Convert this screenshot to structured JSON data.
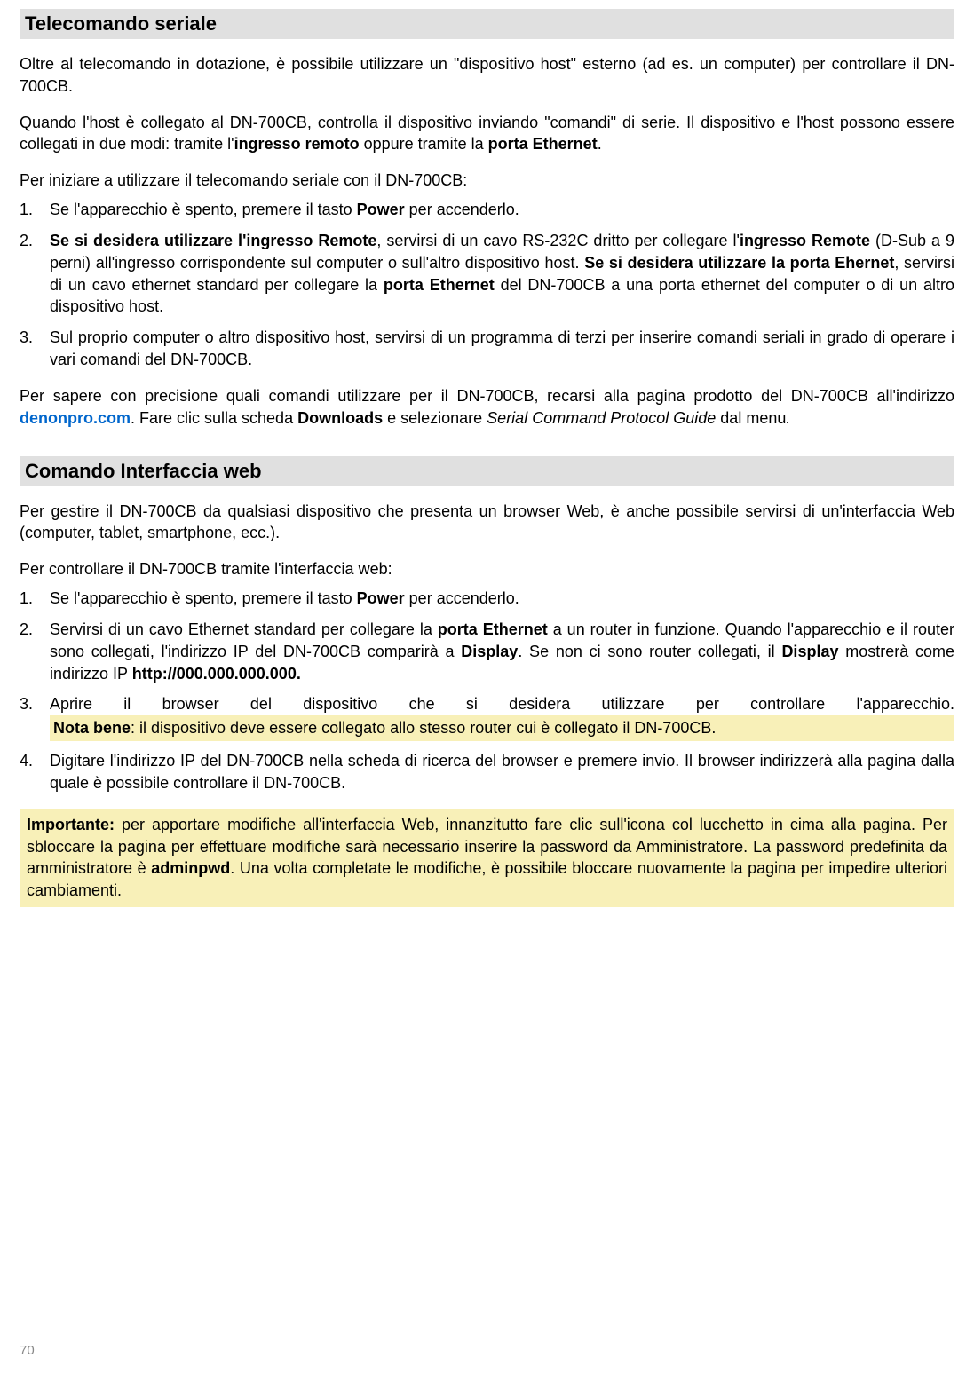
{
  "section1": {
    "heading": "Telecomando seriale",
    "para1": "Oltre al telecomando in dotazione, è possibile utilizzare un \"dispositivo host\" esterno (ad es. un computer) per controllare il DN-700CB.",
    "para2_pre": "Quando l'host è collegato al DN-700CB, controlla il dispositivo inviando \"comandi\" di serie. Il dispositivo e l'host possono essere collegati in due modi: tramite l'",
    "para2_bold1": "ingresso remoto",
    "para2_mid": " oppure tramite la ",
    "para2_bold2": "porta Ethernet",
    "para2_post": ".",
    "intro": "Per iniziare a utilizzare il telecomando seriale con il DN-700CB:",
    "li1_pre": "Se l'apparecchio è spento, premere il tasto ",
    "li1_bold": "Power",
    "li1_post": " per accenderlo.",
    "li2_bold1": "Se si desidera utilizzare l'ingresso Remote",
    "li2_mid1": ", servirsi di un cavo RS-232C dritto per collegare l'",
    "li2_bold2": "ingresso Remote",
    "li2_mid2": " (D-Sub a 9 perni) all'ingresso corrispondente sul computer o sull'altro dispositivo host. ",
    "li2_bold3": "Se si desidera utilizzare la porta Ehernet",
    "li2_mid3": ", servirsi di un cavo ethernet standard per collegare la ",
    "li2_bold4": "porta Ethernet",
    "li2_post": " del DN-700CB a una porta ethernet del computer o di un altro dispositivo host.",
    "li3": "Sul proprio computer o altro dispositivo host, servirsi di un programma di terzi per inserire comandi seriali in grado di operare i vari comandi del DN-700CB.",
    "closing_pre": "Per sapere con precisione quali comandi utilizzare per il DN-700CB, recarsi alla pagina prodotto del DN-700CB all'indirizzo ",
    "closing_link": "denonpro.com",
    "closing_mid1": ". Fare clic sulla scheda ",
    "closing_bold": "Downloads",
    "closing_mid2": " e selezionare ",
    "closing_italic": "Serial Command Protocol Guide",
    "closing_mid3": " dal menu",
    "closing_italic2": "."
  },
  "section2": {
    "heading": "Comando Interfaccia web",
    "para1": "Per gestire il DN-700CB da qualsiasi dispositivo che presenta un browser Web, è anche possibile servirsi di un'interfaccia Web (computer, tablet, smartphone, ecc.).",
    "intro": "Per controllare il DN-700CB tramite l'interfaccia web:",
    "li1_pre": "Se l'apparecchio è spento, premere il tasto ",
    "li1_bold": "Power",
    "li1_post": " per accenderlo.",
    "li2_pre": "Servirsi di un cavo Ethernet standard per collegare la ",
    "li2_bold1": "porta Ethernet",
    "li2_mid1": " a un router in funzione. Quando l'apparecchio e il router sono collegati, l'indirizzo IP del DN-700CB comparirà a ",
    "li2_bold2": "Display",
    "li2_mid2": ". Se non ci sono router collegati, il ",
    "li2_bold3": "Display",
    "li2_mid3": " mostrerà come indirizzo IP ",
    "li2_bold4": "http://000.000.000.000.",
    "li3": "Aprire il browser del dispositivo che si desidera utilizzare per controllare l'apparecchio.",
    "li3_note_bold": "Nota bene",
    "li3_note_post": ": il dispositivo deve essere collegato allo stesso router cui è collegato il DN-700CB.",
    "li4": "Digitare l'indirizzo IP del DN-700CB nella scheda di ricerca del browser e premere invio. Il browser indirizzerà alla pagina dalla quale è possibile controllare il DN-700CB.",
    "important_bold": "Importante:",
    "important_text": " per apportare modifiche all'interfaccia Web, innanzitutto fare clic sull'icona col lucchetto in cima alla pagina. Per sbloccare la pagina per effettuare modifiche sarà necessario inserire la password da Amministratore. La password predefinita da amministratore è ",
    "important_pwd": "adminpwd",
    "important_post": ". Una volta completate le modifiche, è possibile bloccare nuovamente la pagina per impedire ulteriori cambiamenti."
  },
  "page_number": "70"
}
